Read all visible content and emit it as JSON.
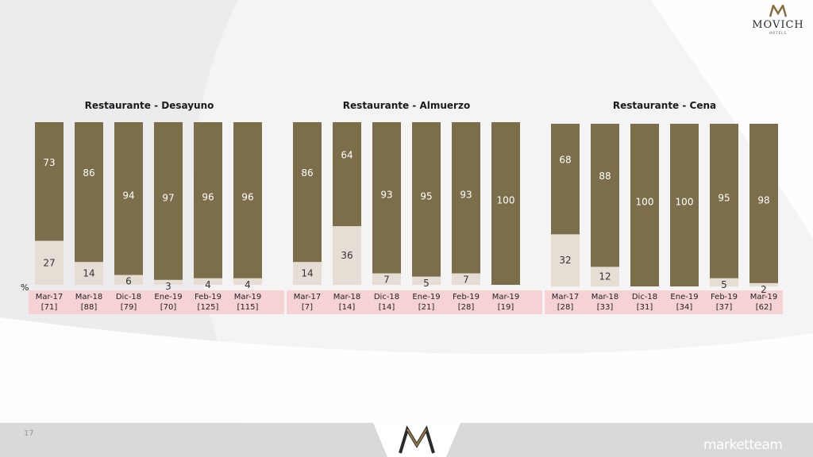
{
  "brand": {
    "name": "MOVICH",
    "sub": "HOTELS"
  },
  "footer": {
    "page_number": "17",
    "agency": "marketteam"
  },
  "unit_label": "%",
  "colors": {
    "dark": "#7d6e4b",
    "light": "#e6ddd5",
    "label_band": "#f6d2d5"
  },
  "chart_data": [
    {
      "type": "bar",
      "stacked": true,
      "title": "Restaurante - Desayuno",
      "categories": [
        "Mar-17",
        "Mar-18",
        "Dic-18",
        "Ene-19",
        "Feb-19",
        "Mar-19"
      ],
      "bases": [
        "[71]",
        "[88]",
        "[79]",
        "[70]",
        "[125]",
        "[115]"
      ],
      "series": [
        {
          "values": [
            73,
            86,
            94,
            97,
            96,
            96
          ]
        },
        {
          "values": [
            27,
            14,
            6,
            3,
            4,
            4
          ]
        }
      ]
    },
    {
      "type": "bar",
      "stacked": true,
      "title": "Restaurante - Almuerzo",
      "categories": [
        "Mar-17",
        "Mar-18",
        "Dic-18",
        "Ene-19",
        "Feb-19",
        "Mar-19"
      ],
      "bases": [
        "[7]",
        "[14]",
        "[14]",
        "[21]",
        "[28]",
        "[19]"
      ],
      "series": [
        {
          "values": [
            86,
            64,
            93,
            95,
            93,
            100
          ]
        },
        {
          "values": [
            14,
            36,
            7,
            5,
            7,
            0
          ]
        }
      ]
    },
    {
      "type": "bar",
      "stacked": true,
      "title": "Restaurante - Cena",
      "categories": [
        "Mar-17",
        "Mar-18",
        "Dic-18",
        "Ene-19",
        "Feb-19",
        "Mar-19"
      ],
      "bases": [
        "[28]",
        "[33]",
        "[31]",
        "[34]",
        "[37]",
        "[62]"
      ],
      "series": [
        {
          "values": [
            68,
            88,
            100,
            100,
            95,
            98
          ]
        },
        {
          "values": [
            32,
            12,
            0,
            0,
            5,
            2
          ]
        }
      ]
    }
  ]
}
